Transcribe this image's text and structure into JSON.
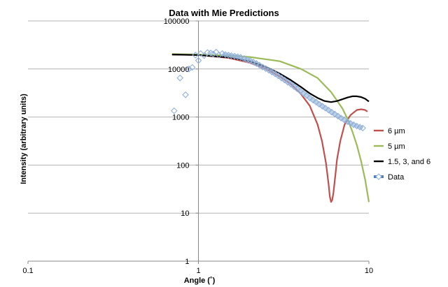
{
  "chart_data": {
    "type": "scatter",
    "title": "Data with Mie Predictions",
    "xlabel": "Angle (˚)",
    "ylabel": "Intensity (arbitrary units)",
    "xscale": "log",
    "yscale": "log",
    "xlim": [
      0.1,
      10
    ],
    "ylim": [
      1,
      100000
    ],
    "x_ticks": [
      "0.1",
      "1",
      "10"
    ],
    "y_ticks": [
      "1",
      "10",
      "100",
      "1000",
      "10000",
      "100000"
    ],
    "grid": "horizontal",
    "legend_position": "right",
    "series": [
      {
        "name": "6 µm",
        "kind": "line",
        "color": "#c0504d",
        "x": [
          0.7,
          1.0,
          1.5,
          2.0,
          2.5,
          3.0,
          3.5,
          4.0,
          4.5,
          5.0,
          5.3,
          5.6,
          5.8,
          5.9,
          6.0,
          6.1,
          6.2,
          6.35,
          6.5,
          6.8,
          7.2,
          7.8,
          8.5,
          9.0,
          9.5,
          9.8
        ],
        "y": [
          20000,
          19500,
          17000,
          13500,
          10000,
          7000,
          4800,
          3000,
          1700,
          700,
          320,
          110,
          40,
          22,
          17,
          19,
          27,
          60,
          130,
          320,
          700,
          1100,
          1400,
          1450,
          1400,
          1300
        ]
      },
      {
        "name": "5 µm",
        "kind": "line",
        "color": "#9bbb59",
        "x": [
          0.7,
          1.0,
          1.5,
          2.0,
          3.0,
          4.0,
          5.0,
          6.0,
          7.0,
          7.5,
          8.0,
          8.5,
          9.0,
          9.5,
          10.0
        ],
        "y": [
          20500,
          20000,
          19000,
          17800,
          14500,
          10000,
          6500,
          3300,
          1500,
          900,
          500,
          260,
          120,
          50,
          17
        ]
      },
      {
        "name": "1.5, 3, and 6",
        "kind": "line",
        "color": "#000000",
        "x": [
          0.7,
          1.0,
          1.5,
          2.0,
          2.5,
          3.0,
          3.5,
          4.0,
          4.5,
          5.0,
          5.5,
          6.0,
          6.5,
          7.0,
          7.5,
          8.0,
          8.5,
          9.0,
          9.5,
          10.0
        ],
        "y": [
          20000,
          19500,
          17500,
          14500,
          11000,
          8000,
          5800,
          4200,
          3100,
          2500,
          2150,
          2050,
          2150,
          2350,
          2550,
          2700,
          2700,
          2600,
          2400,
          2100
        ]
      },
      {
        "name": "Data",
        "kind": "scatter",
        "color": "#4f81bd",
        "x": [
          0.72,
          0.78,
          0.84,
          0.88,
          0.92,
          0.96,
          1.0,
          1.03,
          1.08,
          1.13,
          1.18,
          1.22,
          1.27,
          1.32,
          1.38,
          1.44,
          1.5,
          1.56,
          1.63,
          1.7,
          1.77,
          1.85,
          1.93,
          2.01,
          2.1,
          2.19,
          2.28,
          2.38,
          2.48,
          2.59,
          2.7,
          2.82,
          2.94,
          3.07,
          3.2,
          3.34,
          3.49,
          3.64,
          3.8,
          3.96,
          4.13,
          4.31,
          4.5,
          4.7,
          4.9,
          5.11,
          5.33,
          5.56,
          5.8,
          6.05,
          6.31,
          6.59,
          6.87,
          7.17,
          7.48,
          7.8,
          8.14,
          8.49,
          8.86,
          9.2
        ],
        "y": [
          1350,
          6500,
          2900,
          10000,
          10800,
          19500,
          15000,
          21000,
          19000,
          22000,
          21500,
          20500,
          22500,
          19500,
          21000,
          20000,
          19500,
          19000,
          18500,
          18000,
          17500,
          16500,
          15500,
          15000,
          14000,
          13000,
          12000,
          11000,
          10200,
          9400,
          8600,
          7900,
          7200,
          6500,
          5900,
          5300,
          4800,
          4300,
          3850,
          3450,
          3100,
          2800,
          2500,
          2250,
          2050,
          1850,
          1680,
          1530,
          1390,
          1260,
          1150,
          1040,
          950,
          870,
          800,
          740,
          690,
          650,
          615,
          590
        ]
      }
    ]
  }
}
